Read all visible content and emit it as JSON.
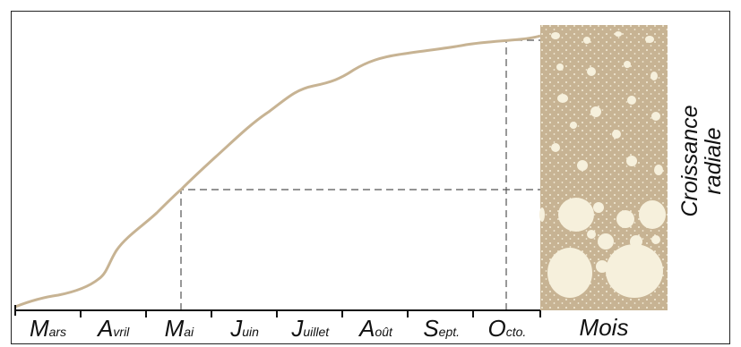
{
  "months": [
    "Mars",
    "Avril",
    "Mai",
    "Juin",
    "Juillet",
    "Août",
    "Sept.",
    "Octo."
  ],
  "x_axis_label": "Mois",
  "y_axis_label": [
    "Croissance",
    "radiale"
  ]
}
